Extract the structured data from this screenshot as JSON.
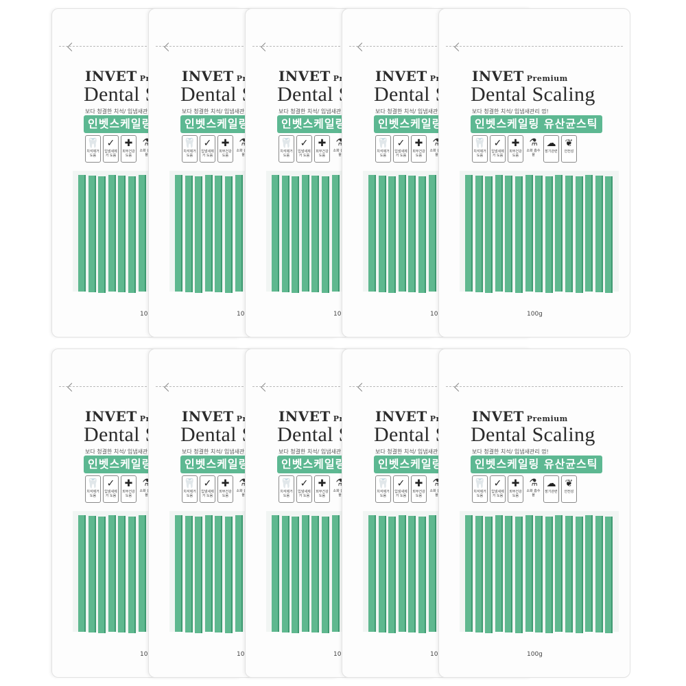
{
  "product": {
    "brand": "INVET",
    "brand_sub": "Premium",
    "title": "Dental Scaling",
    "tagline": "보다 청결한 치석/ 입냄새관리 껌!",
    "korean_name": "인벳스케일링 유산균스틱",
    "weight": "100g",
    "features": [
      {
        "label": "치석제거 도움",
        "icon": "tooth-icon"
      },
      {
        "label": "입냄새제거 도움",
        "icon": "checkmark-leaf-icon"
      },
      {
        "label": "피부건강 도움",
        "icon": "plus-icon"
      },
      {
        "label": "소화 흡수율",
        "icon": "bottle-icon"
      },
      {
        "label": "장기관련",
        "icon": "intestine-icon"
      },
      {
        "label": "안전성",
        "icon": "brain-icon"
      }
    ]
  },
  "layout": {
    "rows": 2,
    "pouches_per_row": 5
  },
  "colors": {
    "stick": "#5fb88f",
    "label_bg": "#5db892"
  }
}
